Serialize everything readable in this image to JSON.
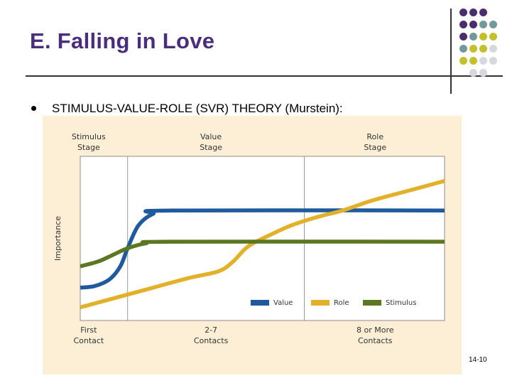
{
  "slide": {
    "title": "E. Falling in Love",
    "bullet": "STIMULUS-VALUE-ROLE (SVR) THEORY (Murstein):",
    "slide_number": "14-10",
    "decor_colors": [
      "#4a2d6c",
      "#72999a",
      "#c4c02c",
      "#d7d7df"
    ]
  },
  "chart_data": {
    "type": "line",
    "ylabel": "Importance",
    "xlim": [
      0,
      100
    ],
    "ylim": [
      0,
      100
    ],
    "stages": [
      {
        "top": [
          "Stimulus",
          "Stage"
        ],
        "bottom": [
          "First",
          "Contact"
        ]
      },
      {
        "top": [
          "Value",
          "Stage"
        ],
        "bottom": [
          "2-7",
          "Contacts"
        ]
      },
      {
        "top": [
          "Role",
          "Stage"
        ],
        "bottom": [
          "8 or More",
          "Contacts"
        ]
      }
    ],
    "stage_bounds": [
      0,
      13,
      61.5,
      100
    ],
    "legend_position": "bottom-right",
    "series": [
      {
        "name": "Value",
        "color": "#1f5a9e",
        "points": [
          [
            0,
            20
          ],
          [
            4,
            21
          ],
          [
            8,
            25
          ],
          [
            11,
            33
          ],
          [
            13,
            44
          ],
          [
            16,
            58
          ],
          [
            20,
            65
          ],
          [
            25,
            67
          ],
          [
            100,
            67
          ]
        ]
      },
      {
        "name": "Role",
        "color": "#e3b02a",
        "points": [
          [
            0,
            8
          ],
          [
            10,
            14
          ],
          [
            20,
            20
          ],
          [
            30,
            26
          ],
          [
            38,
            30
          ],
          [
            42,
            36
          ],
          [
            46,
            45
          ],
          [
            52,
            52
          ],
          [
            58,
            58
          ],
          [
            65,
            63
          ],
          [
            72,
            67
          ],
          [
            80,
            73
          ],
          [
            90,
            79
          ],
          [
            100,
            85
          ]
        ]
      },
      {
        "name": "Stimulus",
        "color": "#5b771f",
        "points": [
          [
            0,
            33
          ],
          [
            5,
            36
          ],
          [
            9,
            40
          ],
          [
            13,
            44
          ],
          [
            18,
            47
          ],
          [
            25,
            48
          ],
          [
            100,
            48
          ]
        ]
      }
    ]
  }
}
